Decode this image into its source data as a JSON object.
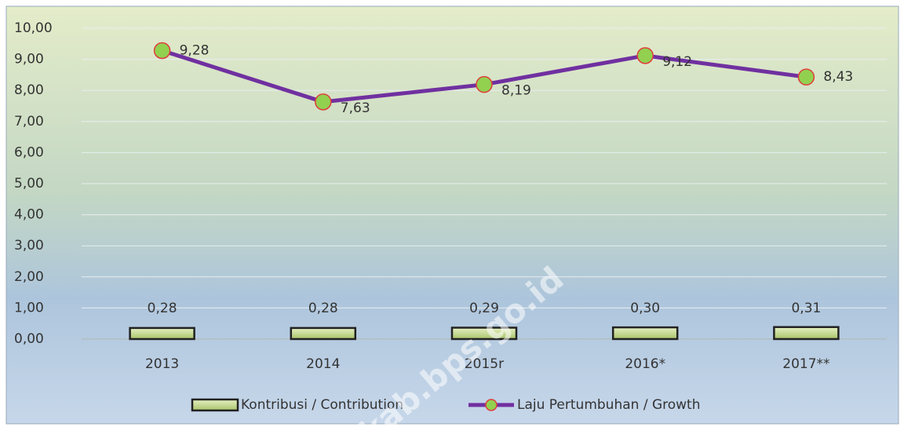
{
  "chart_data": {
    "type": "combo",
    "categories": [
      "2013",
      "2014",
      "2015r",
      "2016*",
      "2017**"
    ],
    "series": [
      {
        "name": "Kontribusi / Contribution",
        "type": "bar",
        "color": "#c9dc8e",
        "values": [
          0.28,
          0.28,
          0.29,
          0.3,
          0.31
        ],
        "value_labels": [
          "0,28",
          "0,28",
          "0,29",
          "0,30",
          "0,31"
        ]
      },
      {
        "name": "Laju Pertumbuhan / Growth",
        "type": "line",
        "color": "#7030a0",
        "marker_color": "#92d050",
        "values": [
          9.28,
          7.63,
          8.19,
          9.12,
          8.43
        ],
        "value_labels": [
          "9,28",
          "7,63",
          "8,19",
          "9,12",
          "8,43"
        ]
      }
    ],
    "ylim": [
      0,
      10
    ],
    "yticks": [
      {
        "value": 0,
        "label": "0,00"
      },
      {
        "value": 1,
        "label": "1,00"
      },
      {
        "value": 2,
        "label": "2,00"
      },
      {
        "value": 3,
        "label": "3,00"
      },
      {
        "value": 4,
        "label": "4,00"
      },
      {
        "value": 5,
        "label": "5,00"
      },
      {
        "value": 6,
        "label": "6,00"
      },
      {
        "value": 7,
        "label": "7,00"
      },
      {
        "value": 8,
        "label": "8,00"
      },
      {
        "value": 9,
        "label": "9,00"
      },
      {
        "value": 10,
        "label": "10,00"
      }
    ],
    "grid": true,
    "legend": "bottom",
    "watermark": "kab.bps.go.id"
  }
}
